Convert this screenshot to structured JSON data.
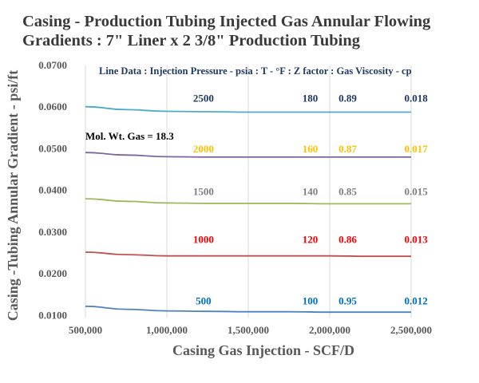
{
  "chart_data": {
    "type": "line",
    "title_lines": [
      "Casing - Production Tubing Injected Gas Annular Flowing",
      "Gradients : 7\" Liner x 2 3/8\"  Production Tubing"
    ],
    "xlabel": "Casing Gas Injection - SCF/D",
    "ylabel": "Casing -Tubing Annular Gradient - psi/ft",
    "xlim": [
      500000,
      2500000
    ],
    "ylim": [
      0.0095,
      0.07
    ],
    "x_ticks": [
      500000,
      1000000,
      1500000,
      2000000,
      2500000
    ],
    "x_tick_labels": [
      "500,000",
      "1,000,000",
      "1,500,000",
      "2,000,000",
      "2,500,000"
    ],
    "y_ticks": [
      0.01,
      0.02,
      0.03,
      0.04,
      0.05,
      0.06,
      0.07
    ],
    "y_tick_labels": [
      "0.0100",
      "0.0200",
      "0.0300",
      "0.0400",
      "0.0500",
      "0.0600",
      "0.0700"
    ],
    "grid": "vertical",
    "header": "Line Data :  Injection Pressure - psia  : T - °F : Z factor : Gas Viscosity - cp",
    "note": "Mol. Wt. Gas = 18.3",
    "x": [
      500000,
      750000,
      1000000,
      1250000,
      1500000,
      1750000,
      2000000,
      2250000,
      2500000
    ],
    "series": [
      {
        "color": "#4bacc6",
        "values": [
          0.0601,
          0.0594,
          0.059,
          0.0589,
          0.0588,
          0.0588,
          0.0588,
          0.0588,
          0.0588
        ],
        "labels": [
          "2500",
          "180",
          "0.89",
          "0.018"
        ],
        "label_color": "#1f3864",
        "label_y": 0.0613
      },
      {
        "color": "#8064a2",
        "values": [
          0.0491,
          0.0485,
          0.0481,
          0.048,
          0.048,
          0.048,
          0.048,
          0.048,
          0.048
        ],
        "labels": [
          "2000",
          "160",
          "0.87",
          "0.017"
        ],
        "label_color": "#ffc000",
        "label_y": 0.0491
      },
      {
        "color": "#9bbb59",
        "values": [
          0.038,
          0.0374,
          0.037,
          0.0369,
          0.0369,
          0.0369,
          0.0368,
          0.0368,
          0.0368
        ],
        "labels": [
          "1500",
          "140",
          "0.85",
          "0.015"
        ],
        "label_color": "#7f7f7f",
        "label_y": 0.0389
      },
      {
        "color": "#c0504d",
        "values": [
          0.0252,
          0.0246,
          0.0243,
          0.0243,
          0.0243,
          0.0243,
          0.0243,
          0.0242,
          0.0242
        ],
        "labels": [
          "1000",
          "120",
          "0.86",
          "0.013"
        ],
        "label_color": "#ff0000",
        "label_y": 0.0274
      },
      {
        "color": "#4f81bd",
        "values": [
          0.0122,
          0.0115,
          0.0111,
          0.011,
          0.0109,
          0.0109,
          0.0108,
          0.0108,
          0.0108
        ],
        "labels": [
          "500",
          "100",
          "0.95",
          "0.012"
        ],
        "label_color": "#0070c0",
        "label_y": 0.0127
      }
    ]
  }
}
